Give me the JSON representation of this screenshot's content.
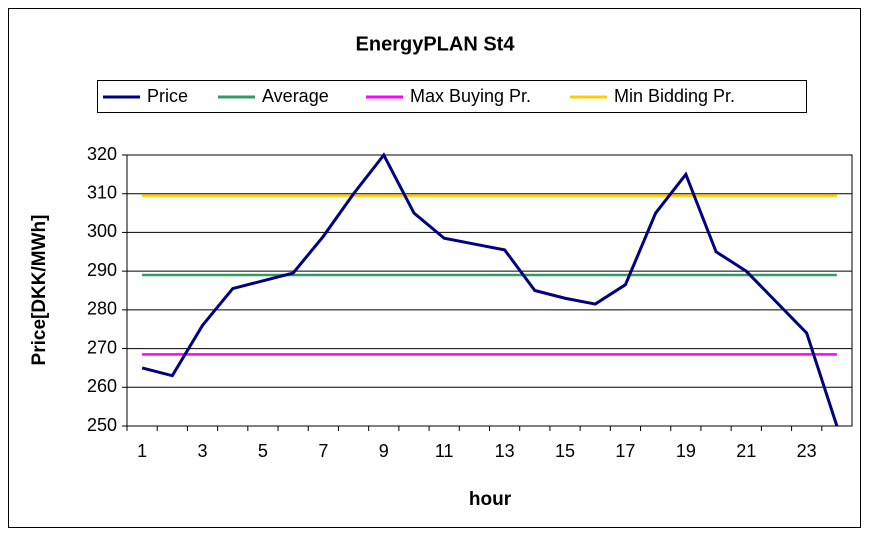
{
  "chart_data": {
    "type": "line",
    "title": "EnergyPLAN St4",
    "x_label": "hour",
    "y_label": "Price[DKK/MWh]",
    "categories": [
      "1",
      null,
      "3",
      null,
      "5",
      null,
      "7",
      null,
      "9",
      null,
      "11",
      null,
      "13",
      null,
      "15",
      null,
      "17",
      null,
      "19",
      null,
      "21",
      null,
      "23",
      null
    ],
    "series": [
      {
        "name": "Price",
        "color": "#000080",
        "values": [
          265,
          263,
          276,
          285.5,
          287.5,
          289.5,
          299,
          310,
          320,
          305,
          298.5,
          297,
          295.5,
          285,
          283,
          281.5,
          286.5,
          305,
          315,
          295,
          290,
          282,
          274,
          250
        ]
      },
      {
        "name": "Average",
        "color": "#339966",
        "values": [
          289,
          289,
          289,
          289,
          289,
          289,
          289,
          289,
          289,
          289,
          289,
          289,
          289,
          289,
          289,
          289,
          289,
          289,
          289,
          289,
          289,
          289,
          289,
          289
        ]
      },
      {
        "name": "Max Buying Pr.",
        "color": "#ff00ff",
        "values": [
          268.5,
          268.5,
          268.5,
          268.5,
          268.5,
          268.5,
          268.5,
          268.5,
          268.5,
          268.5,
          268.5,
          268.5,
          268.5,
          268.5,
          268.5,
          268.5,
          268.5,
          268.5,
          268.5,
          268.5,
          268.5,
          268.5,
          268.5,
          268.5
        ]
      },
      {
        "name": "Min Bidding Pr.",
        "color": "#ffcc00",
        "values": [
          309.5,
          309.5,
          309.5,
          309.5,
          309.5,
          309.5,
          309.5,
          309.5,
          309.5,
          309.5,
          309.5,
          309.5,
          309.5,
          309.5,
          309.5,
          309.5,
          309.5,
          309.5,
          309.5,
          309.5,
          309.5,
          309.5,
          309.5,
          309.5
        ]
      }
    ],
    "ylim": [
      250,
      320
    ],
    "yticks": [
      250,
      260,
      270,
      280,
      290,
      300,
      310,
      320
    ],
    "grid": true,
    "legend_position": "top"
  }
}
